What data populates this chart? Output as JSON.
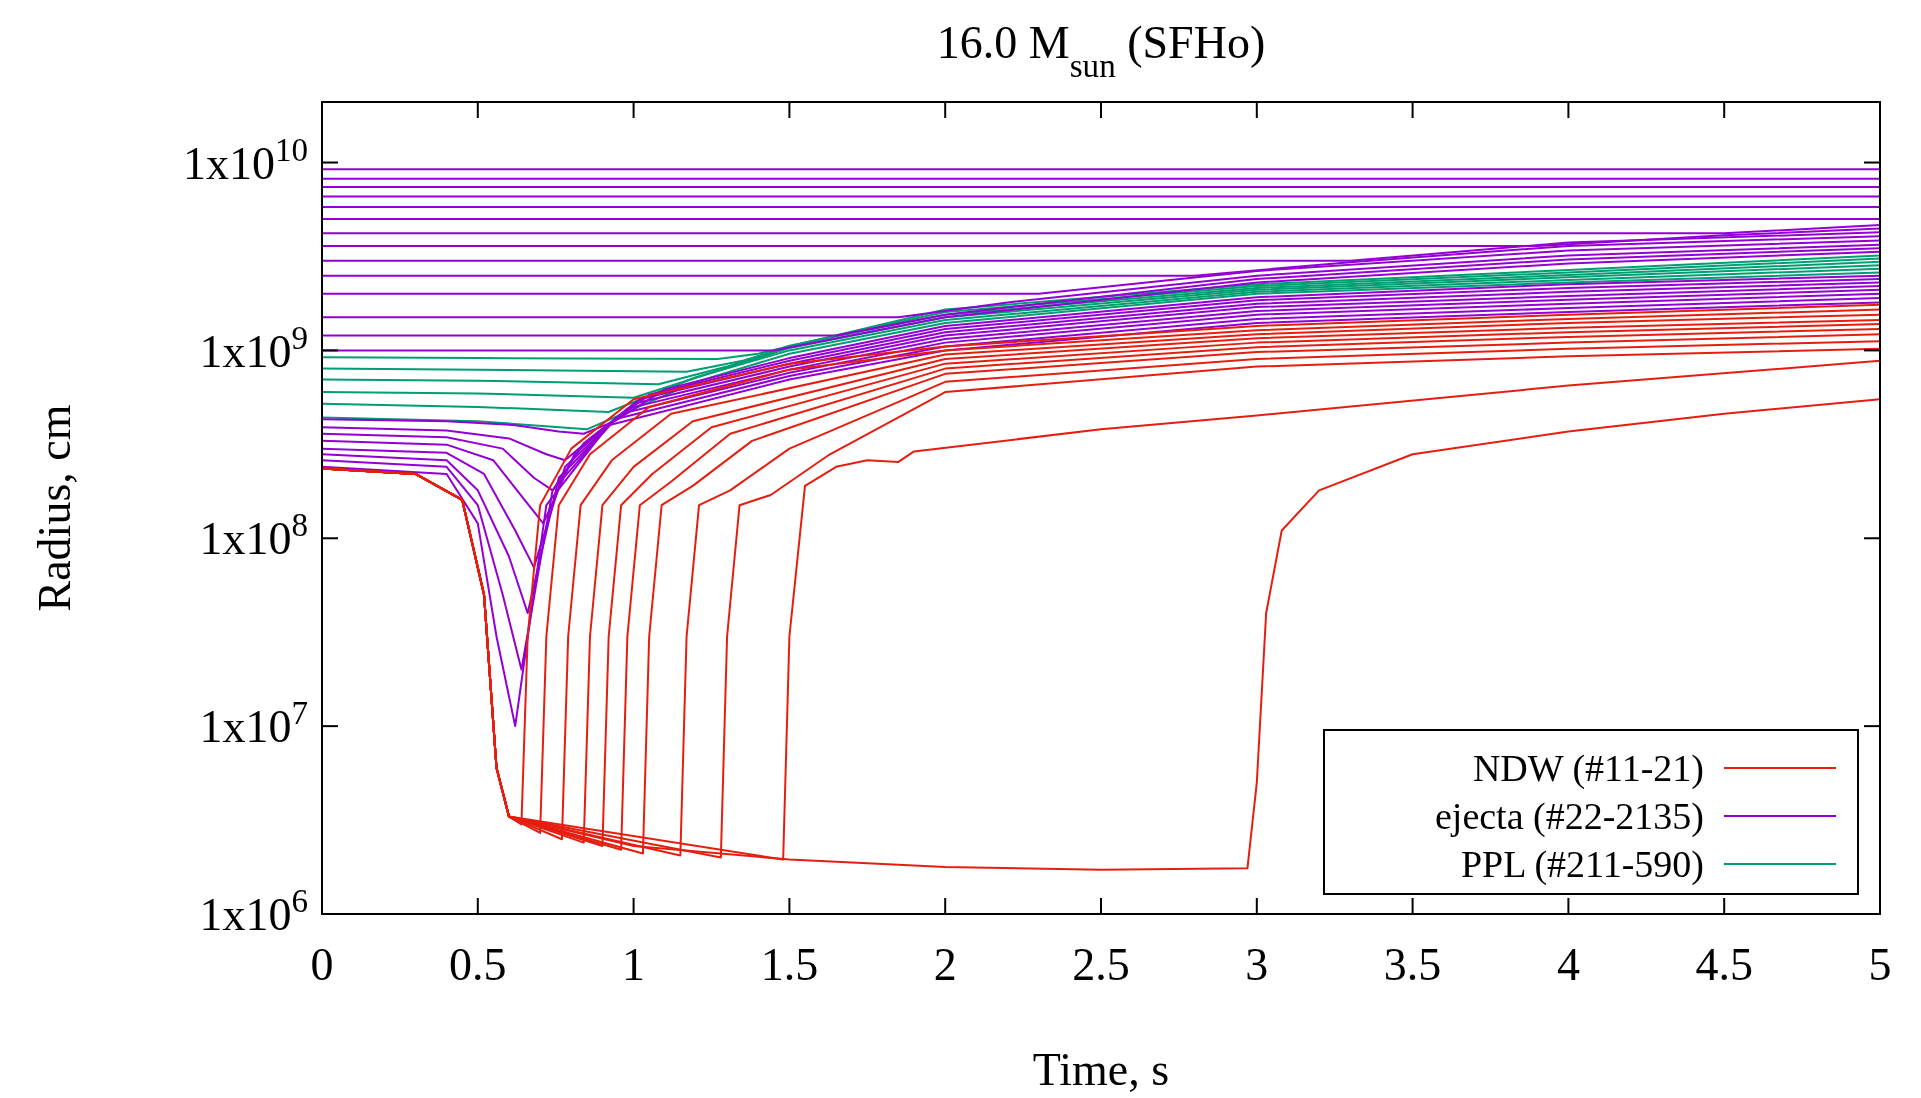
{
  "chart_data": {
    "type": "line",
    "title": "16.0 M$_{sun}$ (SFHo)",
    "xlabel": "Time, s",
    "ylabel": "Radius, cm",
    "xlim": [
      0,
      5
    ],
    "xticks": [
      0,
      0.5,
      1,
      1.5,
      2,
      2.5,
      3,
      3.5,
      4,
      4.5,
      5
    ],
    "ylim": [
      1000000,
      21000000000
    ],
    "log": "y",
    "yticks": [
      {
        "value": 1000000,
        "label": "1x10$^{6}$"
      },
      {
        "value": 10000000,
        "label": "1x10$^{7}$"
      },
      {
        "value": 100000000,
        "label": "1x10$^{8}$"
      },
      {
        "value": 1000000000,
        "label": "1x10$^{9}$"
      },
      {
        "value": 10000000000,
        "label": "1x10$^{10}$"
      }
    ],
    "grid": false,
    "legend": "bottom right",
    "marker": "none",
    "line_style": "solid",
    "series": [
      {
        "name": "NDW (#11-21)",
        "color": "#e51e10",
        "x": [
          0,
          0.3,
          0.45,
          0.52,
          0.56,
          0.6,
          0.64,
          0.66,
          0.7,
          0.8,
          1,
          1.5,
          2,
          3,
          4,
          5
        ],
        "values": [
          235000000.0,
          220000000.0,
          160000000.0,
          50000000.0,
          6000000.0,
          3300000.0,
          3000000.0,
          30000000.0,
          150000000.0,
          300000000.0,
          550000000.0,
          850000000.0,
          1050000000.0,
          1350000000.0,
          1550000000.0,
          1750000000.0
        ]
      },
      {
        "color": "#e51e10",
        "x": [
          0,
          0.3,
          0.45,
          0.52,
          0.56,
          0.6,
          0.7,
          0.72,
          0.76,
          0.86,
          1.05,
          1.5,
          2,
          3,
          4,
          5
        ],
        "values": [
          235000000.0,
          220000000.0,
          160000000.0,
          50000000.0,
          6000000.0,
          3300000.0,
          2700000.0,
          30000000.0,
          150000000.0,
          280000000.0,
          500000000.0,
          790000000.0,
          1000000000.0,
          1280000000.0,
          1470000000.0,
          1650000000.0
        ]
      },
      {
        "color": "#e51e10",
        "x": [
          0,
          0.3,
          0.45,
          0.52,
          0.56,
          0.6,
          0.77,
          0.79,
          0.83,
          0.93,
          1.12,
          2,
          3,
          4,
          5
        ],
        "values": [
          235000000.0,
          220000000.0,
          160000000.0,
          50000000.0,
          6000000.0,
          3300000.0,
          2500000.0,
          30000000.0,
          150000000.0,
          260000000.0,
          460000000.0,
          950000000.0,
          1220000000.0,
          1400000000.0,
          1550000000.0
        ]
      },
      {
        "color": "#e51e10",
        "x": [
          0,
          0.3,
          0.45,
          0.52,
          0.56,
          0.6,
          0.84,
          0.86,
          0.9,
          1.0,
          1.19,
          2,
          3,
          4,
          5
        ],
        "values": [
          235000000.0,
          220000000.0,
          160000000.0,
          50000000.0,
          6000000.0,
          3300000.0,
          2400000.0,
          30000000.0,
          150000000.0,
          240000000.0,
          420000000.0,
          900000000.0,
          1160000000.0,
          1320000000.0,
          1450000000.0
        ]
      },
      {
        "color": "#e51e10",
        "x": [
          0,
          0.3,
          0.45,
          0.52,
          0.56,
          0.6,
          0.9,
          0.92,
          0.96,
          1.06,
          1.25,
          2,
          3,
          4,
          5
        ],
        "values": [
          235000000.0,
          220000000.0,
          160000000.0,
          50000000.0,
          6000000.0,
          3300000.0,
          2300000.0,
          30000000.0,
          150000000.0,
          220000000.0,
          390000000.0,
          850000000.0,
          1100000000.0,
          1250000000.0,
          1380000000.0
        ]
      },
      {
        "color": "#e51e10",
        "x": [
          0,
          0.3,
          0.45,
          0.52,
          0.56,
          0.6,
          0.96,
          0.98,
          1.02,
          1.12,
          1.31,
          2,
          3,
          4,
          5
        ],
        "values": [
          235000000.0,
          220000000.0,
          160000000.0,
          50000000.0,
          6000000.0,
          3300000.0,
          2200000.0,
          30000000.0,
          150000000.0,
          200000000.0,
          360000000.0,
          800000000.0,
          1040000000.0,
          1180000000.0,
          1300000000.0
        ]
      },
      {
        "color": "#e51e10",
        "x": [
          0,
          0.3,
          0.45,
          0.52,
          0.56,
          0.6,
          1.03,
          1.05,
          1.09,
          1.19,
          1.38,
          2,
          3,
          4,
          5
        ],
        "values": [
          235000000.0,
          220000000.0,
          160000000.0,
          50000000.0,
          6000000.0,
          3300000.0,
          2100000.0,
          30000000.0,
          150000000.0,
          190000000.0,
          330000000.0,
          750000000.0,
          980000000.0,
          1100000000.0,
          1220000000.0
        ]
      },
      {
        "color": "#e51e10",
        "x": [
          0,
          0.3,
          0.45,
          0.52,
          0.56,
          0.6,
          1.15,
          1.17,
          1.21,
          1.31,
          1.5,
          2,
          3,
          4,
          5
        ],
        "values": [
          235000000.0,
          220000000.0,
          160000000.0,
          50000000.0,
          6000000.0,
          3300000.0,
          2050000.0,
          30000000.0,
          150000000.0,
          180000000.0,
          300000000.0,
          680000000.0,
          900000000.0,
          1020000000.0,
          1120000000.0
        ]
      },
      {
        "color": "#e51e10",
        "x": [
          0,
          0.3,
          0.45,
          0.52,
          0.56,
          0.6,
          1.28,
          1.3,
          1.34,
          1.44,
          1.63,
          2,
          3,
          4,
          5
        ],
        "values": [
          235000000.0,
          220000000.0,
          160000000.0,
          50000000.0,
          6000000.0,
          3300000.0,
          2000000.0,
          30000000.0,
          150000000.0,
          170000000.0,
          280000000.0,
          600000000.0,
          820000000.0,
          930000000.0,
          1020000000.0
        ]
      },
      {
        "color": "#e51e10",
        "x": [
          0,
          0.3,
          0.45,
          0.52,
          0.56,
          0.6,
          1.48,
          1.5,
          1.55,
          1.65,
          1.75,
          1.85,
          1.9,
          2.5,
          3,
          4,
          5
        ],
        "values": [
          235000000.0,
          220000000.0,
          160000000.0,
          50000000.0,
          6000000.0,
          3300000.0,
          1950000.0,
          30000000.0,
          190000000.0,
          240000000.0,
          260000000.0,
          255000000.0,
          290000000.0,
          380000000.0,
          450000000.0,
          650000000.0,
          880000000.0
        ]
      },
      {
        "color": "#e51e10",
        "x": [
          0,
          0.3,
          0.45,
          0.52,
          0.56,
          0.6,
          1,
          1.5,
          2,
          2.5,
          2.97,
          3.0,
          3.03,
          3.08,
          3.2,
          3.5,
          4,
          4.5,
          5
        ],
        "values": [
          235000000.0,
          220000000.0,
          160000000.0,
          50000000.0,
          6000000.0,
          3300000.0,
          2300000.0,
          1950000.0,
          1780000.0,
          1720000.0,
          1750000.0,
          5000000.0,
          40000000.0,
          110000000.0,
          180000000.0,
          280000000.0,
          370000000.0,
          460000000.0,
          550000000.0
        ]
      },
      {
        "name": "ejecta (#22-2135)",
        "color": "#9400d3",
        "x": [
          0,
          0.4,
          0.5,
          0.56,
          0.62,
          0.72,
          0.92,
          1.5,
          2,
          3,
          4,
          5
        ],
        "values": [
          240000000.0,
          220000000.0,
          120000000.0,
          30000000.0,
          10000000.0,
          150000000.0,
          400000000.0,
          700000000.0,
          1000000000.0,
          1400000000.0,
          1600000000.0,
          1800000000.0
        ]
      },
      {
        "color": "#9400d3",
        "x": [
          0,
          0.4,
          0.5,
          0.58,
          0.64,
          0.74,
          0.94,
          1.5,
          2,
          3,
          4,
          5
        ],
        "values": [
          260000000.0,
          240000000.0,
          150000000.0,
          50000000.0,
          20000000.0,
          180000000.0,
          430000000.0,
          730000000.0,
          1050000000.0,
          1470000000.0,
          1680000000.0,
          1900000000.0
        ]
      },
      {
        "color": "#9400d3",
        "x": [
          0,
          0.4,
          0.5,
          0.6,
          0.66,
          0.76,
          0.96,
          1.5,
          2,
          3,
          4,
          5
        ],
        "values": [
          280000000.0,
          260000000.0,
          180000000.0,
          80000000.0,
          40000000.0,
          210000000.0,
          460000000.0,
          760000000.0,
          1100000000.0,
          1550000000.0,
          1770000000.0,
          2000000000.0
        ]
      },
      {
        "color": "#9400d3",
        "x": [
          0,
          0.4,
          0.52,
          0.62,
          0.68,
          0.78,
          0.98,
          1.5,
          2,
          3,
          4,
          5
        ],
        "values": [
          300000000.0,
          285000000.0,
          220000000.0,
          110000000.0,
          70000000.0,
          240000000.0,
          490000000.0,
          790000000.0,
          1150000000.0,
          1620000000.0,
          1860000000.0,
          2100000000.0
        ]
      },
      {
        "color": "#9400d3",
        "x": [
          0,
          0.4,
          0.55,
          0.65,
          0.71,
          0.81,
          1.0,
          1.5,
          2,
          3,
          4,
          5
        ],
        "values": [
          330000000.0,
          315000000.0,
          260000000.0,
          160000000.0,
          120000000.0,
          280000000.0,
          520000000.0,
          820000000.0,
          1200000000.0,
          1700000000.0,
          1950000000.0,
          2200000000.0
        ]
      },
      {
        "color": "#9400d3",
        "x": [
          0,
          0.4,
          0.58,
          0.68,
          0.74,
          0.84,
          1.02,
          1.5,
          2,
          3,
          4,
          5
        ],
        "values": [
          360000000.0,
          345000000.0,
          300000000.0,
          210000000.0,
          180000000.0,
          320000000.0,
          550000000.0,
          850000000.0,
          1250000000.0,
          1770000000.0,
          2050000000.0,
          2300000000.0
        ]
      },
      {
        "color": "#9400d3",
        "x": [
          0,
          0.4,
          0.6,
          0.72,
          0.78,
          0.88,
          1.05,
          1.5,
          2,
          3,
          4,
          5
        ],
        "values": [
          390000000.0,
          375000000.0,
          340000000.0,
          280000000.0,
          260000000.0,
          360000000.0,
          580000000.0,
          880000000.0,
          1300000000.0,
          1850000000.0,
          2150000000.0,
          2400000000.0
        ]
      },
      {
        "color": "#9400d3",
        "x": [
          0,
          0.4,
          0.62,
          0.76,
          0.84,
          0.94,
          1.1,
          1.5,
          2,
          3,
          4,
          5
        ],
        "values": [
          430000000.0,
          420000000.0,
          400000000.0,
          370000000.0,
          360000000.0,
          420000000.0,
          620000000.0,
          910000000.0,
          1350000000.0,
          1920000000.0,
          2250000000.0,
          2500000000.0
        ]
      },
      {
        "color": "#9400d3",
        "x": [
          0,
          1.45,
          2,
          3,
          4,
          5
        ],
        "values": [
          1000000000.0,
          1000000000.0,
          1500000000.0,
          2300000000.0,
          2900000000.0,
          3350000000.0
        ]
      },
      {
        "color": "#9400d3",
        "x": [
          0,
          1.65,
          2,
          3,
          4,
          5
        ],
        "values": [
          1200000000.0,
          1200000000.0,
          1550000000.0,
          2400000000.0,
          3050000000.0,
          3500000000.0
        ]
      },
      {
        "color": "#9400d3",
        "x": [
          0,
          1.85,
          2.2,
          3,
          4,
          5
        ],
        "values": [
          1500000000.0,
          1500000000.0,
          1800000000.0,
          2500000000.0,
          3200000000.0,
          3650000000.0
        ]
      },
      {
        "color": "#9400d3",
        "x": [
          0,
          2.3,
          3,
          4,
          5
        ],
        "values": [
          2000000000.0,
          2000000000.0,
          2650000000.0,
          3400000000.0,
          3850000000.0
        ]
      },
      {
        "color": "#9400d3",
        "x": [
          0,
          2.8,
          3.3,
          4,
          5
        ],
        "values": [
          2500000000.0,
          2500000000.0,
          2950000000.0,
          3600000000.0,
          4050000000.0
        ]
      },
      {
        "color": "#9400d3",
        "x": [
          0,
          3.3,
          4,
          5
        ],
        "values": [
          3000000000.0,
          3000000000.0,
          3750000000.0,
          4250000000.0
        ]
      },
      {
        "color": "#9400d3",
        "x": [
          0,
          3.9,
          4.5,
          5
        ],
        "values": [
          3600000000.0,
          3600000000.0,
          4100000000.0,
          4450000000.0
        ]
      },
      {
        "color": "#9400d3",
        "x": [
          0,
          4.5,
          5
        ],
        "values": [
          4200000000.0,
          4200000000.0,
          4650000000.0
        ]
      },
      {
        "color": "#9400d3",
        "x": [
          0,
          5
        ],
        "values": [
          5000000000.0,
          5000000000.0
        ]
      },
      {
        "color": "#9400d3",
        "x": [
          0,
          5
        ],
        "values": [
          5800000000.0,
          5800000000.0
        ]
      },
      {
        "color": "#9400d3",
        "x": [
          0,
          5
        ],
        "values": [
          6600000000.0,
          6600000000.0
        ]
      },
      {
        "color": "#9400d3",
        "x": [
          0,
          5
        ],
        "values": [
          7400000000.0,
          7400000000.0
        ]
      },
      {
        "color": "#9400d3",
        "x": [
          0,
          5
        ],
        "values": [
          8200000000.0,
          8200000000.0
        ]
      },
      {
        "color": "#9400d3",
        "x": [
          0,
          5
        ],
        "values": [
          9200000000.0,
          9200000000.0
        ]
      },
      {
        "name": "PPL (#211-590)",
        "color": "#009e73",
        "x": [
          0,
          0.5,
          0.85,
          1.2,
          1.5,
          2,
          3,
          4,
          5
        ],
        "values": [
          440000000.0,
          420000000.0,
          380000000.0,
          680000000.0,
          960000000.0,
          1400000000.0,
          2000000000.0,
          2300000000.0,
          2600000000.0
        ]
      },
      {
        "color": "#009e73",
        "x": [
          0,
          0.5,
          0.92,
          1.2,
          1.5,
          2,
          3,
          4,
          5
        ],
        "values": [
          520000000.0,
          500000000.0,
          470000000.0,
          720000000.0,
          1000000000.0,
          1450000000.0,
          2050000000.0,
          2370000000.0,
          2720000000.0
        ]
      },
      {
        "color": "#009e73",
        "x": [
          0,
          0.5,
          1.0,
          1.25,
          1.5,
          2,
          3,
          4,
          5
        ],
        "values": [
          600000000.0,
          590000000.0,
          560000000.0,
          760000000.0,
          1030000000.0,
          1500000000.0,
          2100000000.0,
          2450000000.0,
          2840000000.0
        ]
      },
      {
        "color": "#009e73",
        "x": [
          0,
          0.5,
          1.08,
          1.3,
          1.5,
          2,
          3,
          4,
          5
        ],
        "values": [
          700000000.0,
          690000000.0,
          660000000.0,
          820000000.0,
          1060000000.0,
          1550000000.0,
          2150000000.0,
          2520000000.0,
          2960000000.0
        ]
      },
      {
        "color": "#009e73",
        "x": [
          0,
          0.5,
          1.17,
          1.35,
          1.55,
          2,
          3,
          4,
          5
        ],
        "values": [
          800000000.0,
          790000000.0,
          770000000.0,
          880000000.0,
          1100000000.0,
          1600000000.0,
          2200000000.0,
          2600000000.0,
          3080000000.0
        ]
      },
      {
        "color": "#009e73",
        "x": [
          0,
          0.5,
          1.27,
          1.4,
          1.6,
          2,
          3,
          4,
          5
        ],
        "values": [
          920000000.0,
          910000000.0,
          900000000.0,
          960000000.0,
          1150000000.0,
          1650000000.0,
          2250000000.0,
          2680000000.0,
          3200000000.0
        ]
      }
    ]
  }
}
